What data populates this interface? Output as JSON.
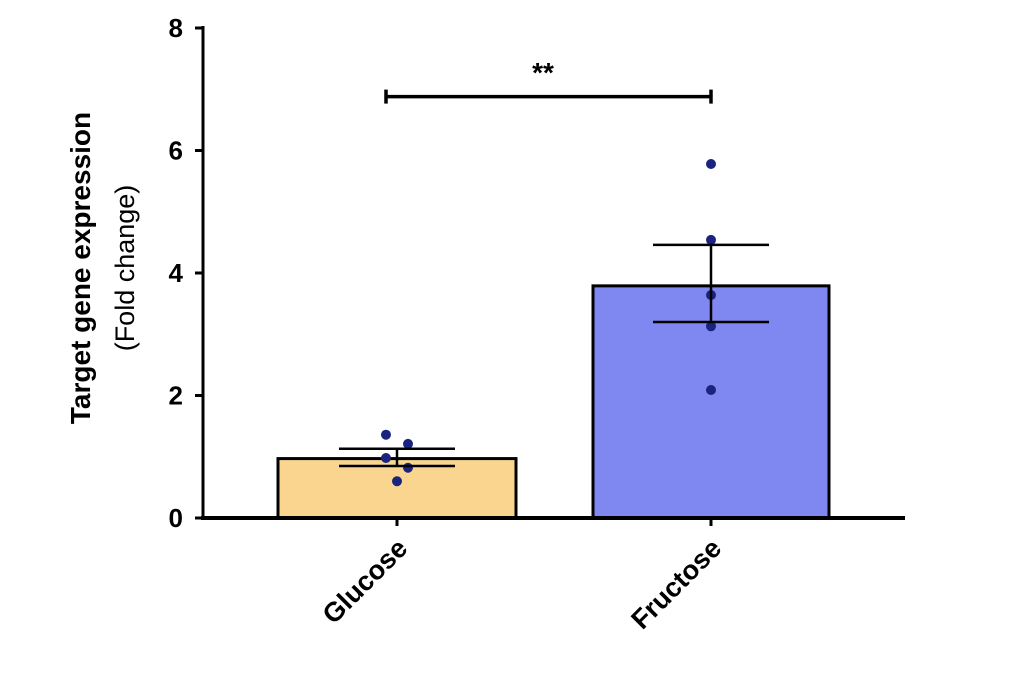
{
  "chart_data": {
    "type": "bar",
    "title": "",
    "ylabel": "Target gene expression",
    "ylabel_sub": "(Fold change)",
    "xlabel": "",
    "ylim": [
      0,
      8
    ],
    "yticks": [
      "0",
      "2",
      "4",
      "6",
      "8"
    ],
    "grid": false,
    "categories": [
      "Glucose",
      "Fructose"
    ],
    "values": [
      0.97,
      3.79
    ],
    "error_upper": [
      1.13,
      4.46
    ],
    "error_lower": [
      0.85,
      3.2
    ],
    "points": [
      [
        1.36,
        1.21,
        0.98,
        0.82,
        0.6
      ],
      [
        5.78,
        4.54,
        3.64,
        3.13,
        2.09
      ]
    ],
    "colors": {
      "bars": [
        "#f9d590",
        "#7f87f0"
      ],
      "points": "#1a237e",
      "outline": "#000000"
    },
    "significance": {
      "label": "**",
      "between": [
        "Glucose",
        "Fructose"
      ],
      "y": 6.88
    }
  }
}
